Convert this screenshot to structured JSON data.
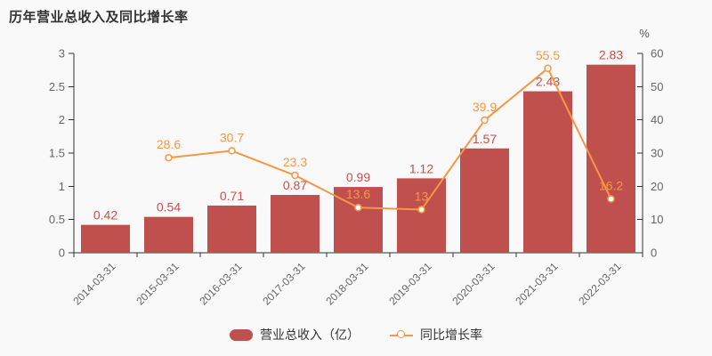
{
  "title": "历年营业总收入及同比增长率",
  "background": "#f9f9f9",
  "legend": {
    "items": [
      {
        "label": "营业总收入（亿）",
        "type": "bar"
      },
      {
        "label": "同比增长率",
        "type": "line"
      }
    ]
  },
  "chart_data": {
    "type": "bar+line combo",
    "categories": [
      "2014-03-31",
      "2015-03-31",
      "2016-03-31",
      "2017-03-31",
      "2018-03-31",
      "2019-03-31",
      "2020-03-31",
      "2021-03-31",
      "2022-03-31"
    ],
    "series": [
      {
        "name": "营业总收入（亿）",
        "type": "bar",
        "axis": "left",
        "color": "#c0504d",
        "label_color": "#ca4f4b",
        "values": [
          0.42,
          0.54,
          0.71,
          0.87,
          0.99,
          1.12,
          1.57,
          2.43,
          2.83
        ]
      },
      {
        "name": "同比增长率",
        "type": "line",
        "axis": "right",
        "color": "#f79646",
        "label_color": "#f79646",
        "values": [
          null,
          28.6,
          30.7,
          23.3,
          13.6,
          13,
          39.9,
          55.5,
          16.2
        ]
      }
    ],
    "left_axis": {
      "min": 0,
      "max": 3,
      "step": 0.5,
      "ticks": [
        "0",
        "0.5",
        "1",
        "1.5",
        "2",
        "2.5",
        "3"
      ]
    },
    "right_axis": {
      "min": 0,
      "max": 60,
      "step": 10,
      "unit": "%",
      "ticks": [
        "0",
        "10",
        "20",
        "30",
        "40",
        "50",
        "60"
      ]
    },
    "grid": false,
    "legend_position": "bottom-center",
    "axis_color": "#333333",
    "tick_label_color": "#666666"
  }
}
